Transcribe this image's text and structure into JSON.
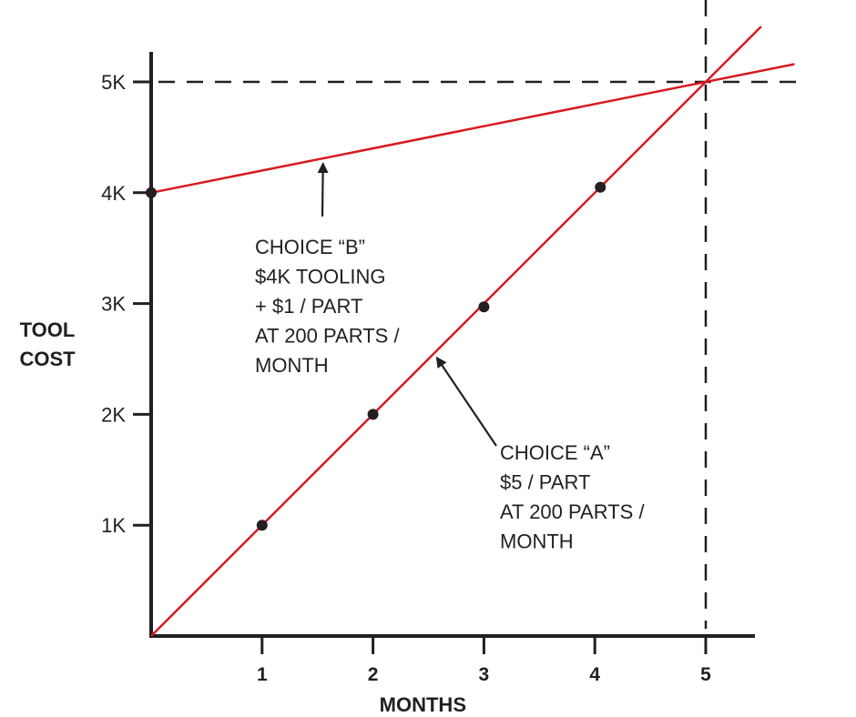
{
  "chart_data": {
    "type": "line",
    "xlabel": "MONTHS",
    "ylabel_lines": [
      "TOOL",
      "COST"
    ],
    "xlim": [
      0,
      5.5
    ],
    "ylim": [
      0,
      5.5
    ],
    "x_ticks": [
      {
        "value": 1,
        "label": "1"
      },
      {
        "value": 2,
        "label": "2"
      },
      {
        "value": 3,
        "label": "3"
      },
      {
        "value": 4,
        "label": "4"
      },
      {
        "value": 5,
        "label": "5"
      }
    ],
    "y_ticks": [
      {
        "value": 1,
        "label": "1K"
      },
      {
        "value": 2,
        "label": "2K"
      },
      {
        "value": 3,
        "label": "3K"
      },
      {
        "value": 4,
        "label": "4K"
      },
      {
        "value": 5,
        "label": "5K"
      }
    ],
    "line_color": "#d71920",
    "series": [
      {
        "key": "choice-a",
        "line": [
          [
            0,
            0
          ],
          [
            5.5,
            5.5
          ]
        ],
        "points": [
          [
            1,
            1
          ],
          [
            2,
            2
          ],
          [
            3,
            2.97
          ],
          [
            4.05,
            4.05
          ]
        ]
      },
      {
        "key": "choice-b",
        "line": [
          [
            0,
            4
          ],
          [
            5.8,
            5.16
          ]
        ],
        "points": [
          [
            0,
            4
          ]
        ]
      }
    ],
    "reference_lines": {
      "horizontal_y": 5,
      "vertical_x": 5
    },
    "annotations": [
      {
        "key": "choice-b",
        "lines": [
          "CHOICE “B”",
          "$4K TOOLING",
          "+ $1 / PART",
          "AT 200 PARTS /",
          "MONTH"
        ],
        "arrow_target": [
          1.55,
          4.31
        ]
      },
      {
        "key": "choice-a",
        "lines": [
          "CHOICE “A”",
          "$5 / PART",
          "AT 200 PARTS /",
          "MONTH"
        ],
        "arrow_target": [
          2.55,
          2.55
        ]
      }
    ]
  }
}
